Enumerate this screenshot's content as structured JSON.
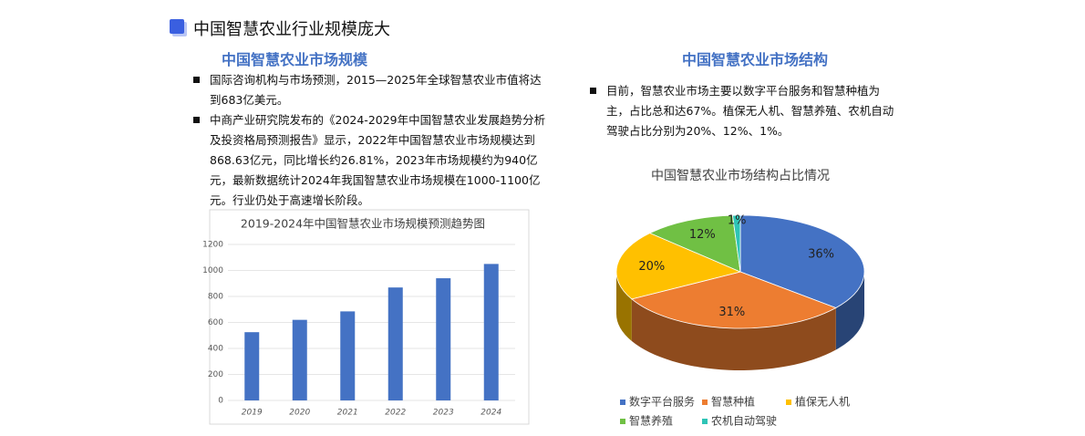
{
  "header": {
    "title": "中国智慧农业行业规模庞大"
  },
  "left": {
    "heading": "中国智慧农业市场规模",
    "bullets": [
      "国际咨询机构与市场预测，2015—2025年全球智慧农业市值将达到683亿美元。",
      "中商产业研究院发布的《2024-2029年中国智慧农业发展趋势分析及投资格局预测报告》显示，2022年中国智慧农业市场规模达到868.63亿元，同比增长约26.81%，2023年市场规模约为940亿元，最新数据统计2024年我国智慧农业市场规模在1000-1100亿元。行业仍处于高速增长阶段。"
    ]
  },
  "right": {
    "heading": "中国智慧农业市场结构",
    "bullets": [
      "目前，智慧农业市场主要以数字平台服务和智慧种植为主，占比总和达67%。植保无人机、智慧养殖、农机自动驾驶占比分别为20%、12%、1%。"
    ]
  },
  "chart_data": [
    {
      "type": "bar",
      "title": "2019-2024年中国智慧农业市场规模预测趋势图",
      "categories": [
        "2019",
        "2020",
        "2021",
        "2022",
        "2023",
        "2024"
      ],
      "values": [
        525,
        620,
        685,
        869,
        940,
        1050
      ],
      "color": "#4472c4",
      "ylim": [
        0,
        1200
      ],
      "yticks": [
        0,
        200,
        400,
        600,
        800,
        1000,
        1200
      ],
      "grid": true
    },
    {
      "type": "pie",
      "title": "中国智慧农业市场结构占比情况",
      "categories": [
        "数字平台服务",
        "智慧种植",
        "植保无人机",
        "智慧养殖",
        "农机自动驾驶"
      ],
      "values": [
        36,
        31,
        20,
        12,
        1
      ],
      "value_labels": [
        "36%",
        "31%",
        "20%",
        "12%",
        "1%"
      ],
      "colors": [
        "#4472c4",
        "#ed7d31",
        "#ffc000",
        "#70c044",
        "#2ec4b6"
      ]
    }
  ]
}
